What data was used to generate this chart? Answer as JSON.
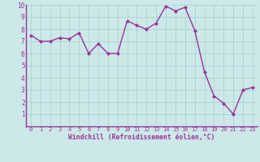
{
  "x": [
    0,
    1,
    2,
    3,
    4,
    5,
    6,
    7,
    8,
    9,
    10,
    11,
    12,
    13,
    14,
    15,
    16,
    17,
    18,
    19,
    20,
    21,
    22,
    23
  ],
  "y": [
    7.5,
    7.0,
    7.0,
    7.3,
    7.2,
    7.7,
    6.0,
    6.8,
    6.0,
    6.0,
    8.7,
    8.3,
    8.0,
    8.5,
    9.9,
    9.5,
    9.8,
    7.9,
    4.5,
    2.5,
    1.9,
    1.0,
    3.0,
    3.2
  ],
  "line_color": "#993399",
  "marker": "D",
  "marker_size": 2,
  "bg_color": "#cce8e8",
  "grid_color": "#aad4d4",
  "xlabel": "Windchill (Refroidissement éolien,°C)",
  "xlabel_color": "#993399",
  "tick_color": "#993399",
  "axis_color": "#993399",
  "xlim": [
    -0.5,
    23.5
  ],
  "ylim": [
    0,
    10
  ],
  "xticks": [
    0,
    1,
    2,
    3,
    4,
    5,
    6,
    7,
    8,
    9,
    10,
    11,
    12,
    13,
    14,
    15,
    16,
    17,
    18,
    19,
    20,
    21,
    22,
    23
  ],
  "yticks": [
    1,
    2,
    3,
    4,
    5,
    6,
    7,
    8,
    9,
    10
  ],
  "line_width": 1.0
}
